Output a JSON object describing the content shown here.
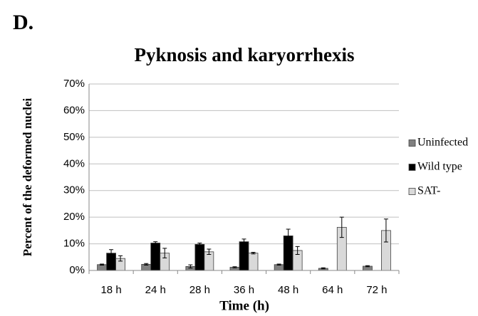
{
  "panel_label": "D.",
  "chart_data": {
    "type": "bar",
    "title": "Pyknosis and karyorrhexis",
    "xlabel": "Time (h)",
    "ylabel": "Percent of the deformed nuclei",
    "categories": [
      "18 h",
      "24 h",
      "28 h",
      "36 h",
      "48 h",
      "64 h",
      "72 h"
    ],
    "series": [
      {
        "name": "Uninfected",
        "color": "#808080",
        "values": [
          2.2,
          2.3,
          1.5,
          1.2,
          2.2,
          0.8,
          1.6
        ],
        "errors": [
          0.2,
          0.3,
          0.6,
          0.2,
          0.2,
          0.2,
          0.2
        ]
      },
      {
        "name": "Wild type",
        "color": "#000000",
        "values": [
          6.5,
          10.3,
          9.8,
          10.8,
          13,
          null,
          null
        ],
        "errors": [
          1.3,
          0.5,
          0.5,
          1,
          2.5,
          null,
          null
        ]
      },
      {
        "name": "SAT-",
        "color": "#d9d9d9",
        "values": [
          4.5,
          6.5,
          7,
          6.5,
          7.5,
          16.2,
          15
        ],
        "errors": [
          1,
          1.8,
          1,
          0.3,
          1.5,
          3.8,
          4.3
        ]
      }
    ],
    "ylim": [
      0,
      70
    ],
    "yticks": [
      {
        "value": 0,
        "label": "0%"
      },
      {
        "value": 10,
        "label": "10%"
      },
      {
        "value": 20,
        "label": "20%"
      },
      {
        "value": 30,
        "label": "30%"
      },
      {
        "value": 40,
        "label": "40%"
      },
      {
        "value": 50,
        "label": "50%"
      },
      {
        "value": 60,
        "label": "60%"
      },
      {
        "value": 70,
        "label": "70%"
      }
    ],
    "grid": true,
    "legend": "right"
  }
}
